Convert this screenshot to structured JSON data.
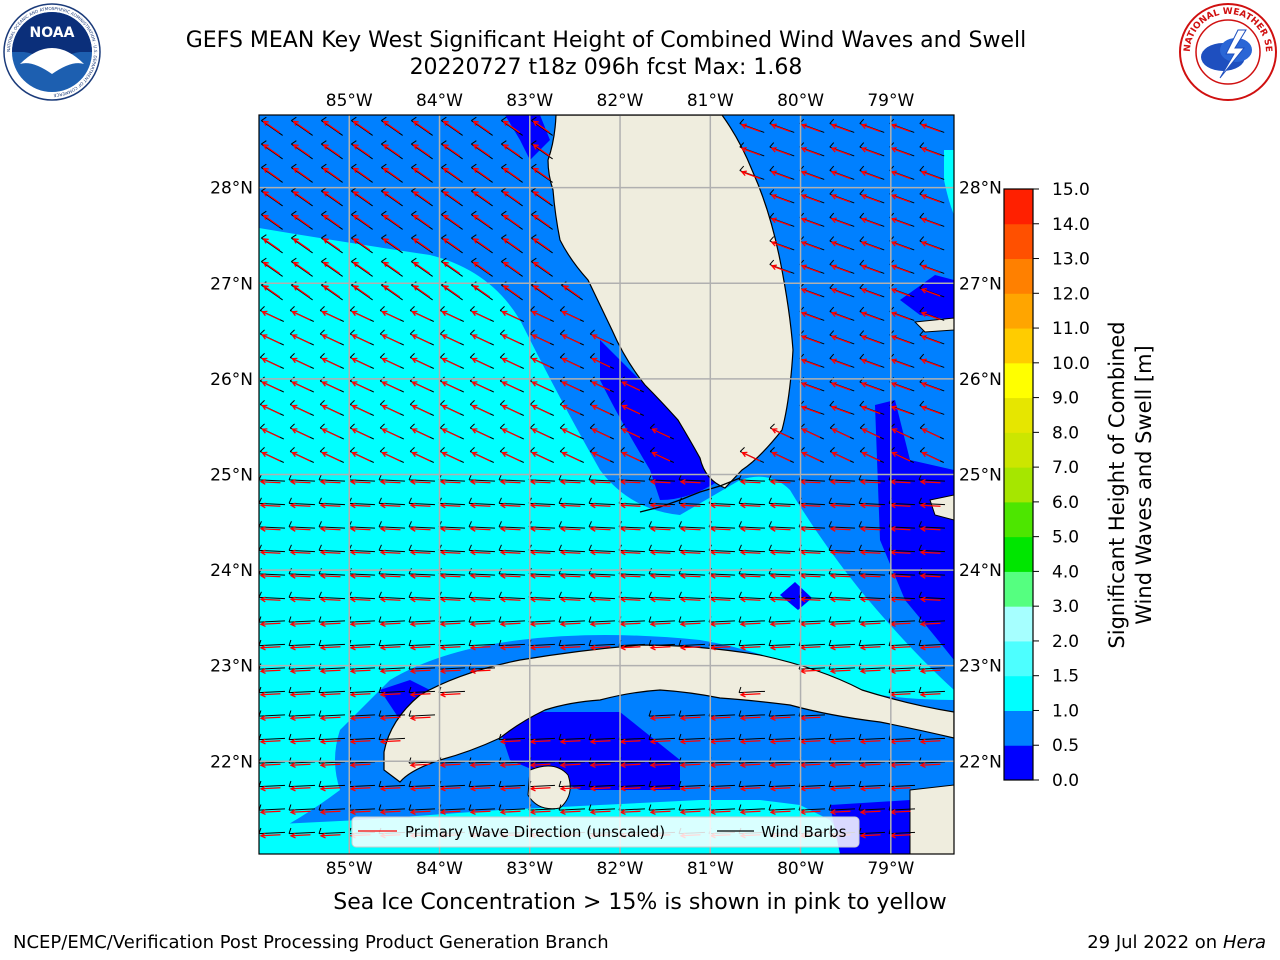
{
  "header": {
    "title_line1": "GEFS MEAN Key West Significant Height of Combined Wind Waves and Swell",
    "title_line2": "20220727 t18z 096h fcst   Max: 1.68"
  },
  "logos": {
    "left": {
      "name": "noaa-logo",
      "text": "NOAA",
      "ring_text": "NATIONAL OCEANIC AND ATMOSPHERIC ADMINISTRATION · U.S. DEPARTMENT OF COMMERCE"
    },
    "right": {
      "name": "nws-logo",
      "ring_text": "NATIONAL WEATHER SERVICE"
    }
  },
  "map": {
    "lon_range": [
      -86,
      -78.3
    ],
    "lat_range": [
      21.03,
      28.76
    ],
    "lon_ticks": [
      "85°W",
      "84°W",
      "83°W",
      "82°W",
      "81°W",
      "80°W",
      "79°W"
    ],
    "lat_ticks": [
      "28°N",
      "27°N",
      "26°N",
      "25°N",
      "24°N",
      "23°N",
      "22°N"
    ],
    "grid": true,
    "colors": {
      "land": "#efedde",
      "band_0_0_5": "#0000ff",
      "band_0_5_1_0": "#0080ff",
      "band_1_0_1_5": "#00ffff",
      "wave_arrow": "#ff0000",
      "wind_barb": "#000000"
    }
  },
  "legend": {
    "placement": "lower-center",
    "primary_wave": "Primary Wave Direction (unscaled)",
    "wind_barbs": "Wind Barbs"
  },
  "colorbar": {
    "label_line1": "Significant Height of Combined",
    "label_line2": "Wind Waves and Swell [m]",
    "ticks": [
      "0.0",
      "0.5",
      "1.0",
      "1.5",
      "2.0",
      "3.0",
      "4.0",
      "5.0",
      "6.0",
      "7.0",
      "8.0",
      "9.0",
      "10.0",
      "11.0",
      "12.0",
      "13.0",
      "14.0",
      "15.0"
    ],
    "colors": [
      "#0000ff",
      "#0080ff",
      "#00ffff",
      "#4dffff",
      "#a6ffff",
      "#55ff80",
      "#00e600",
      "#4de600",
      "#a6e600",
      "#cce600",
      "#e6e600",
      "#ffff00",
      "#ffcc00",
      "#ffa500",
      "#ff8000",
      "#ff5000",
      "#ff2000"
    ]
  },
  "footer": {
    "ice_note": "Sea Ice Concentration > 15% is shown in pink to yellow",
    "credit": "NCEP/EMC/Verification Post Processing Product Generation Branch",
    "date": "29 Jul 2022 on ",
    "host": "Hera"
  }
}
